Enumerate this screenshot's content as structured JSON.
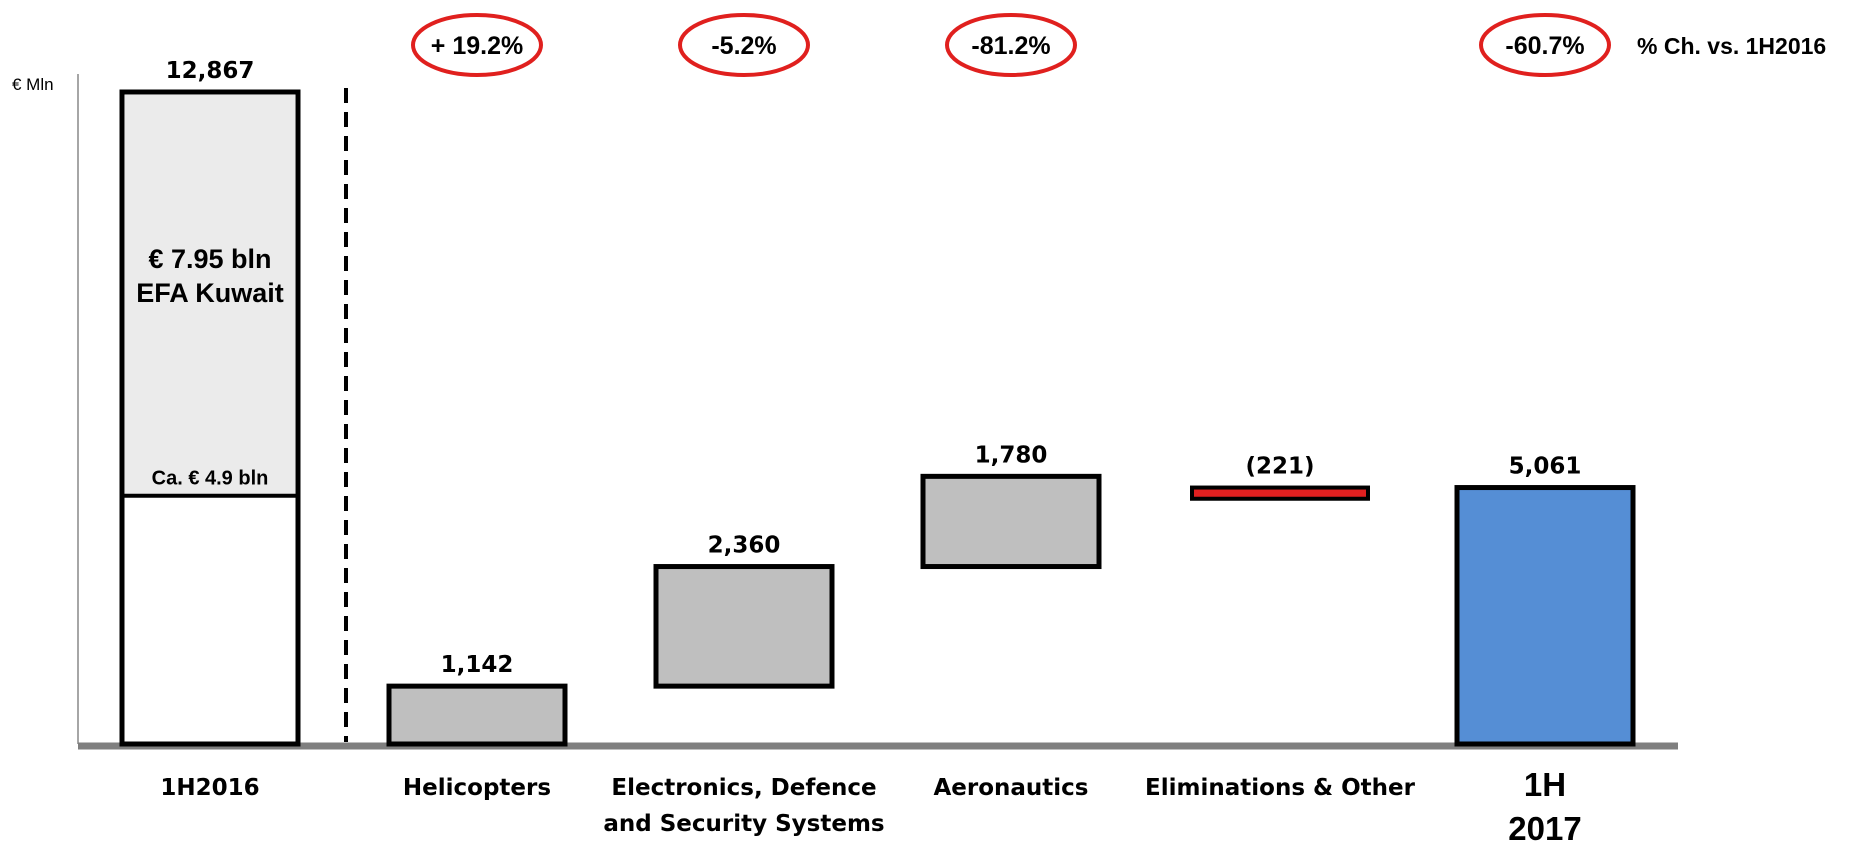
{
  "chart_data": {
    "type": "bar",
    "subtype": "waterfall",
    "unit_label": "€ Mln",
    "pct_header": "% Ch. vs. 1H2016",
    "ylim": [
      0,
      13700
    ],
    "grid": false,
    "legend": "none",
    "categories": [
      "1H2016",
      "Helicopters",
      "Electronics, Defence and Security Systems",
      "Aeronautics",
      "Eliminations & Other",
      "1H 2017"
    ],
    "category_lines": [
      [
        "1H2016"
      ],
      [
        "Helicopters"
      ],
      [
        "Electronics, Defence",
        "and Security Systems"
      ],
      [
        "Aeronautics"
      ],
      [
        "Eliminations & Other"
      ],
      [
        "1H",
        "2017"
      ]
    ],
    "bars": [
      {
        "category": "1H2016",
        "kind": "total",
        "base": 0,
        "value": 12867,
        "label": "12,867"
      },
      {
        "category": "Helicopters",
        "kind": "step",
        "base": 0,
        "value": 1142,
        "label": "1,142"
      },
      {
        "category": "Electronics, Defence and Security Systems",
        "kind": "step",
        "base": 1142,
        "value": 2360,
        "label": "2,360"
      },
      {
        "category": "Aeronautics",
        "kind": "step",
        "base": 3502,
        "value": 1780,
        "label": "1,780"
      },
      {
        "category": "Eliminations & Other",
        "kind": "negative",
        "base": 5061,
        "value": 221,
        "label": "(221)"
      },
      {
        "category": "1H 2017",
        "kind": "total",
        "base": 0,
        "value": 5061,
        "label": "5,061"
      }
    ],
    "pct_changes": [
      {
        "category": "Helicopters",
        "label": "+ 19.2%"
      },
      {
        "category": "Electronics, Defence and Security Systems",
        "label": "-5.2%"
      },
      {
        "category": "Aeronautics",
        "label": "-81.2%"
      },
      {
        "category": "1H 2017",
        "label": "-60.7%"
      }
    ],
    "first_bar_split": {
      "value": 4900,
      "lower_label": "Ca. € 4.9 bln",
      "upper_label_lines": [
        "€ 7.95 bln",
        "EFA Kuwait"
      ]
    },
    "colors": {
      "total_start_fill": "#ffffff",
      "split_fill": "#ebebeb",
      "step_fill": "#bfbfbf",
      "negative_fill": "#e02020",
      "final_fill": "#558ed5",
      "outline": "#000000",
      "axis": "#7f7f7f",
      "pct_ring": "#e0201e"
    }
  }
}
